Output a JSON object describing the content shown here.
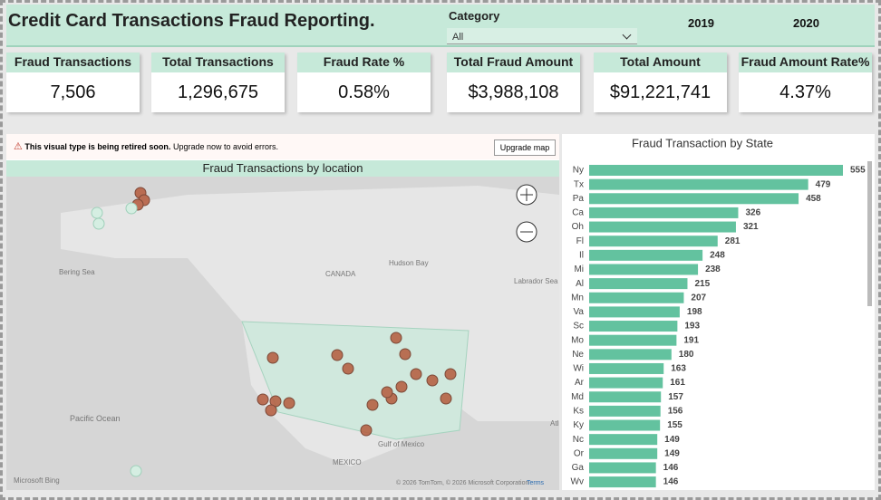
{
  "header": {
    "title": "Credit Card Transactions Fraud Reporting.",
    "category_label": "Category",
    "category_value": "All",
    "years": [
      "2019",
      "2020"
    ]
  },
  "kpis": [
    {
      "label": "Fraud Transactions",
      "value": "7,506"
    },
    {
      "label": "Total Transactions",
      "value": "1,296,675"
    },
    {
      "label": "Fraud Rate %",
      "value": "0.58%"
    },
    {
      "label": "Total Fraud Amount",
      "value": "$3,988,108"
    },
    {
      "label": "Total Amount",
      "value": "$91,221,741"
    },
    {
      "label": "Fraud Amount Rate%",
      "value": "4.37%"
    }
  ],
  "map": {
    "warning_bold": "This visual type is being retired soon.",
    "warning_text": "Upgrade now to avoid errors.",
    "button": "Upgrade map",
    "title": "Fraud Transactions by location",
    "labels": [
      "Bering Sea",
      "CANADA",
      "Hudson Bay",
      "Labrador Sea",
      "Pacific Ocean",
      "Gulf of Mexico",
      "MEXICO",
      "Atl"
    ],
    "brand": "Microsoft Bing",
    "copyright": "© 2026 TomTom, © 2026 Microsoft Corporation",
    "terms": "Terms"
  },
  "chart_data": {
    "type": "bar",
    "orientation": "horizontal",
    "title": "Fraud Transaction by State",
    "color": "#63c29f",
    "categories": [
      "Ny",
      "Tx",
      "Pa",
      "Ca",
      "Oh",
      "Fl",
      "Il",
      "Mi",
      "Al",
      "Mn",
      "Va",
      "Sc",
      "Mo",
      "Ne",
      "Wi",
      "Ar",
      "Md",
      "Ks",
      "Ky",
      "Nc",
      "Or",
      "Ga",
      "Wv"
    ],
    "values": [
      555,
      479,
      458,
      326,
      321,
      281,
      248,
      238,
      215,
      207,
      198,
      193,
      191,
      180,
      163,
      161,
      157,
      156,
      155,
      149,
      149,
      146,
      146
    ]
  }
}
